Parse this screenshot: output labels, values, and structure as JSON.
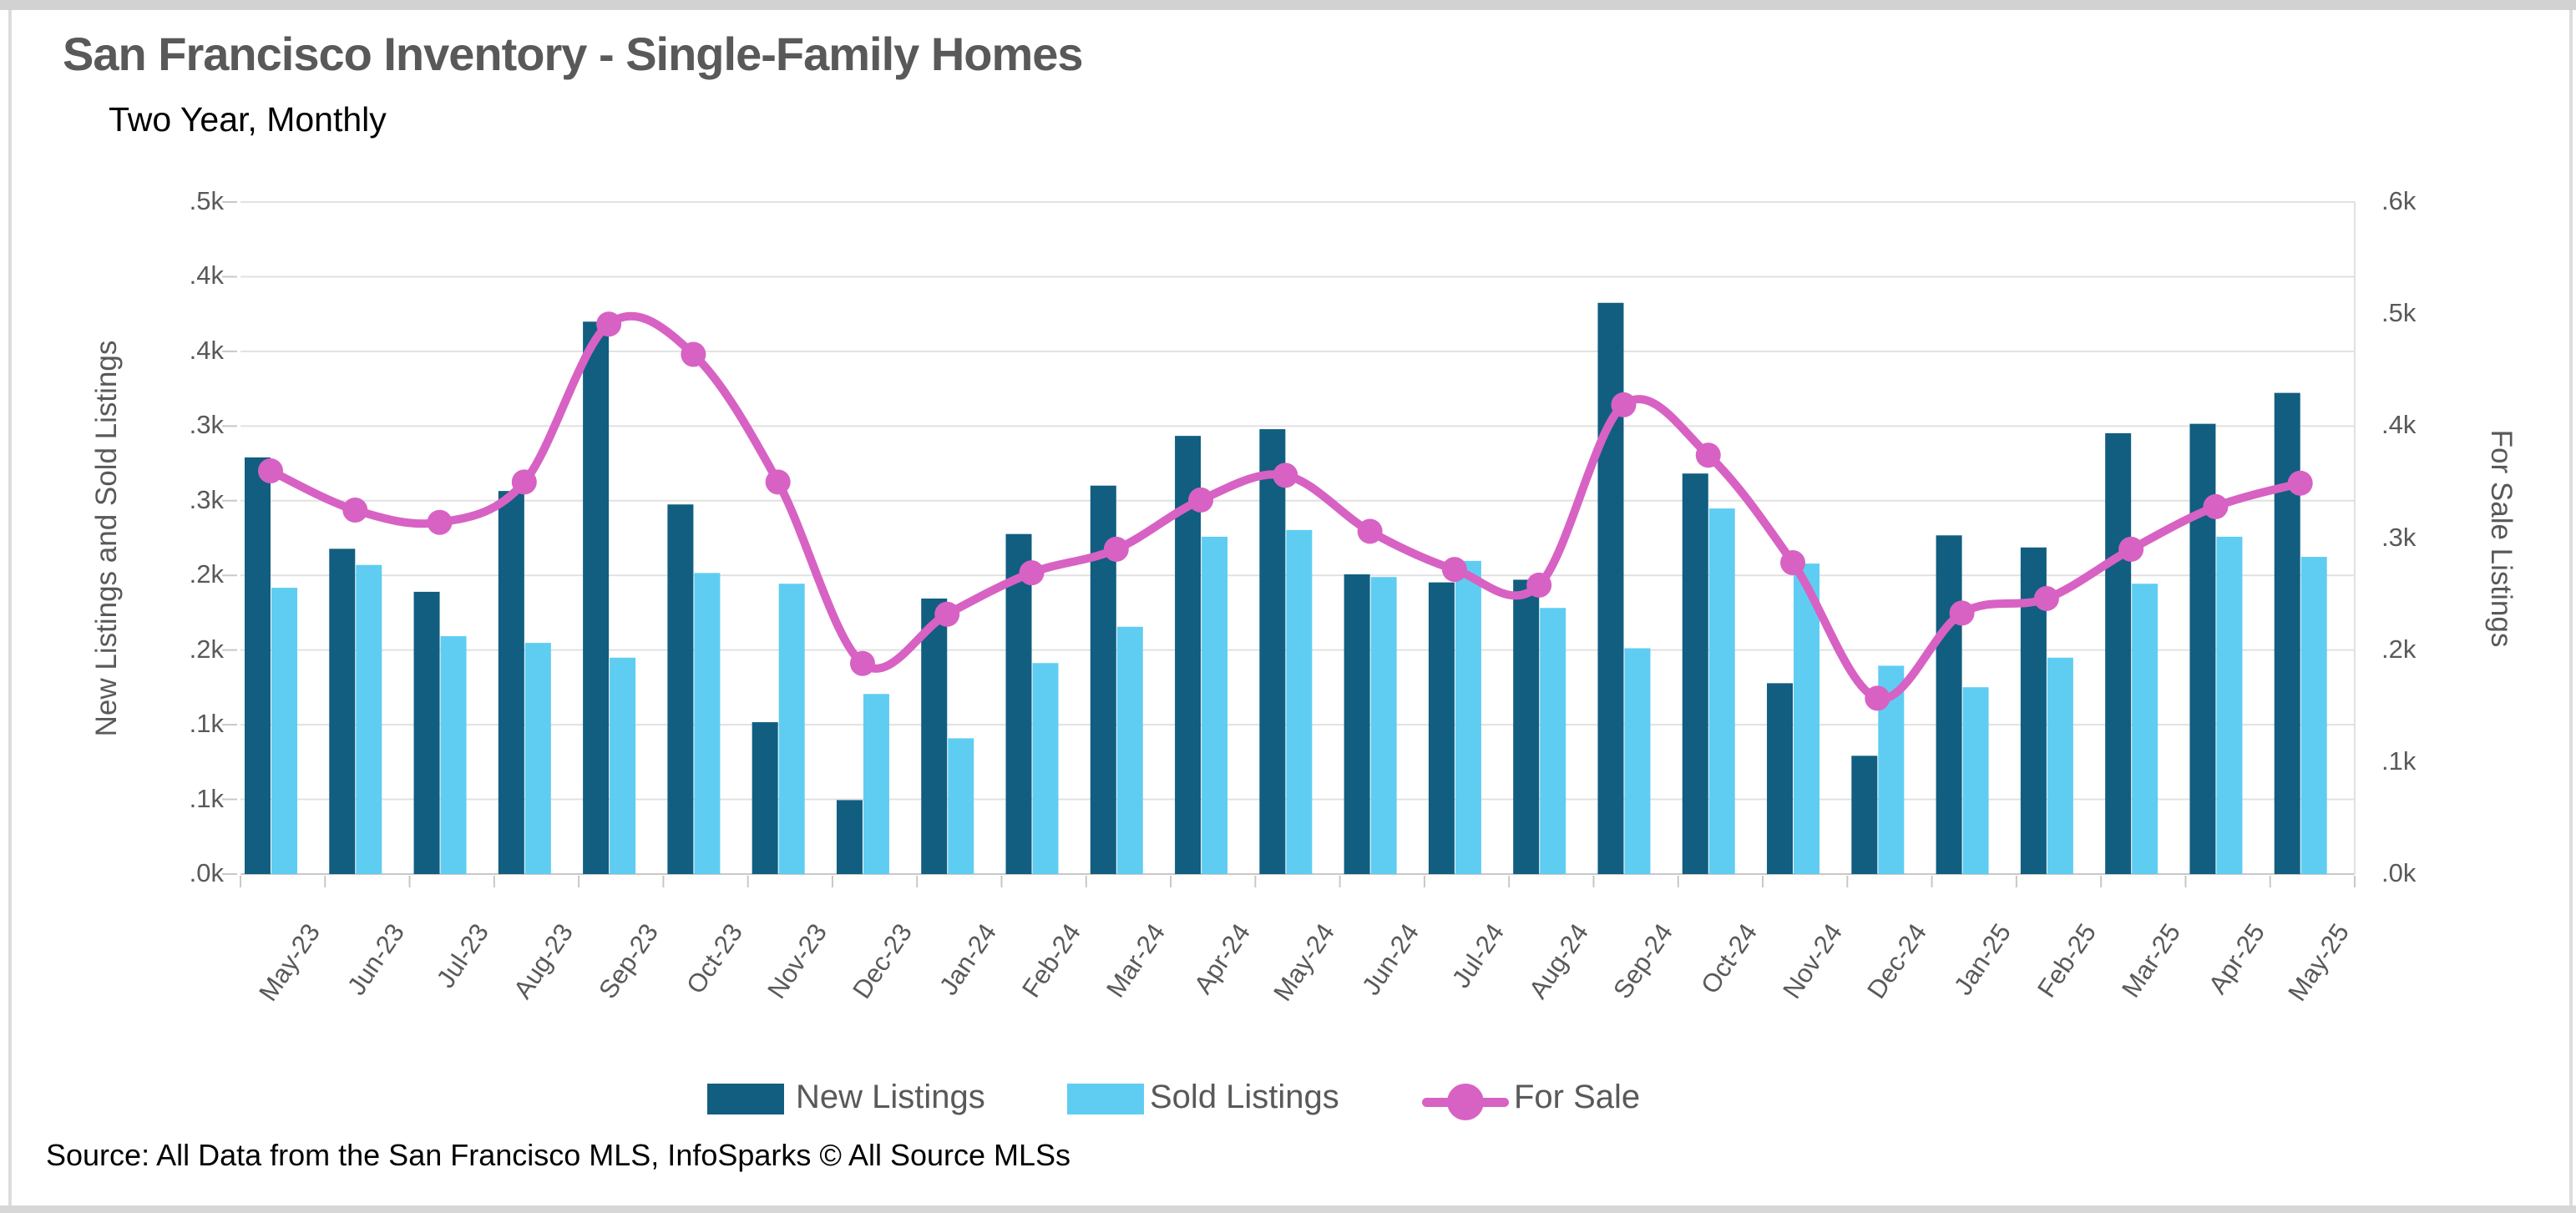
{
  "page": {
    "title": "San Francisco Inventory - Single-Family Homes",
    "subtitle": "Two Year, Monthly",
    "source": "Source: All Data from the San Francisco MLS, InfoSparks © All Source MLSs"
  },
  "colors": {
    "new_listings": "#115e80",
    "sold_listings": "#5fcdf2",
    "for_sale": "#d762c4",
    "gridline": "#e1e1e1",
    "axis_tick": "#c8c8c8",
    "axis_text": "#595959",
    "title_text": "#595959"
  },
  "legend": {
    "items": [
      {
        "label": "New Listings",
        "type": "swatch"
      },
      {
        "label": "Sold Listings",
        "type": "swatch"
      },
      {
        "label": "For Sale",
        "type": "line-marker"
      }
    ]
  },
  "chart_data": {
    "type": "bar",
    "subtype": "grouped-bars-with-line",
    "title": "San Francisco Inventory - Single-Family Homes",
    "subtitle": "Two Year, Monthly",
    "categories": [
      "May-23",
      "Jun-23",
      "Jul-23",
      "Aug-23",
      "Sep-23",
      "Oct-23",
      "Nov-23",
      "Dec-23",
      "Jan-24",
      "Feb-24",
      "Mar-24",
      "Apr-24",
      "May-24",
      "Jun-24",
      "Jul-24",
      "Aug-24",
      "Sep-24",
      "Oct-24",
      "Nov-24",
      "Dec-24",
      "Jan-25",
      "Feb-25",
      "Mar-25",
      "Apr-25",
      "May-25"
    ],
    "series": [
      {
        "name": "New Listings",
        "type": "bar",
        "axis": "left",
        "values": [
          310,
          242,
          210,
          285,
          411,
          275,
          113,
          55,
          205,
          253,
          289,
          326,
          331,
          223,
          217,
          219,
          425,
          298,
          142,
          88,
          252,
          243,
          328,
          335,
          358
        ]
      },
      {
        "name": "Sold Listings",
        "type": "bar",
        "axis": "left",
        "values": [
          213,
          230,
          177,
          172,
          161,
          224,
          216,
          134,
          101,
          157,
          184,
          251,
          256,
          221,
          233,
          198,
          168,
          272,
          231,
          155,
          139,
          161,
          216,
          251,
          236
        ]
      },
      {
        "name": "For Sale",
        "type": "line",
        "axis": "right",
        "values": [
          360,
          325,
          314,
          350,
          491,
          464,
          350,
          188,
          232,
          269,
          290,
          334,
          356,
          306,
          272,
          258,
          419,
          374,
          278,
          157,
          233,
          246,
          290,
          328,
          349
        ]
      }
    ],
    "y_axis_left": {
      "title": "New Listings and Sold Listings",
      "range": [
        0,
        500
      ],
      "tick_labels": [
        ".5k",
        ".4k",
        ".4k",
        ".3k",
        ".3k",
        ".2k",
        ".2k",
        ".1k",
        ".1k",
        ".0k"
      ]
    },
    "y_axis_right": {
      "title": "For Sale Listings",
      "range": [
        0,
        600
      ],
      "tick_labels": [
        ".6k",
        ".5k",
        ".4k",
        ".3k",
        ".2k",
        ".1k",
        ".0k"
      ]
    },
    "grid": true,
    "legend_position": "bottom"
  }
}
